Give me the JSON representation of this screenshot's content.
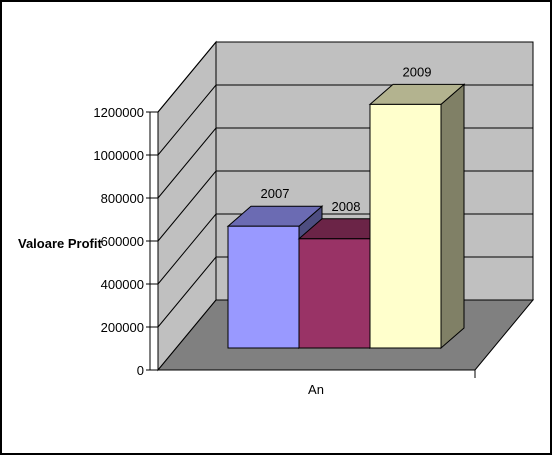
{
  "chart_data": {
    "type": "bar",
    "style": "3d-column",
    "categories": [
      "2007",
      "2008",
      "2009"
    ],
    "values": [
      580000,
      520000,
      1160000
    ],
    "data_labels": [
      "2007",
      "2008",
      "2009"
    ],
    "colors": [
      "#9999ff",
      "#993366",
      "#ffffcc"
    ],
    "title": "",
    "xlabel": "An",
    "ylabel": "Valoare Profit",
    "ylim": [
      0,
      1200000
    ],
    "yticks": [
      0,
      200000,
      400000,
      600000,
      800000,
      1000000,
      1200000
    ],
    "ytick_labels": [
      "0",
      "200000",
      "400000",
      "600000",
      "800000",
      "1000000",
      "1200000"
    ],
    "grid": true,
    "legend": "none",
    "wall_color": "#c0c0c0",
    "floor_color": "#808080"
  }
}
